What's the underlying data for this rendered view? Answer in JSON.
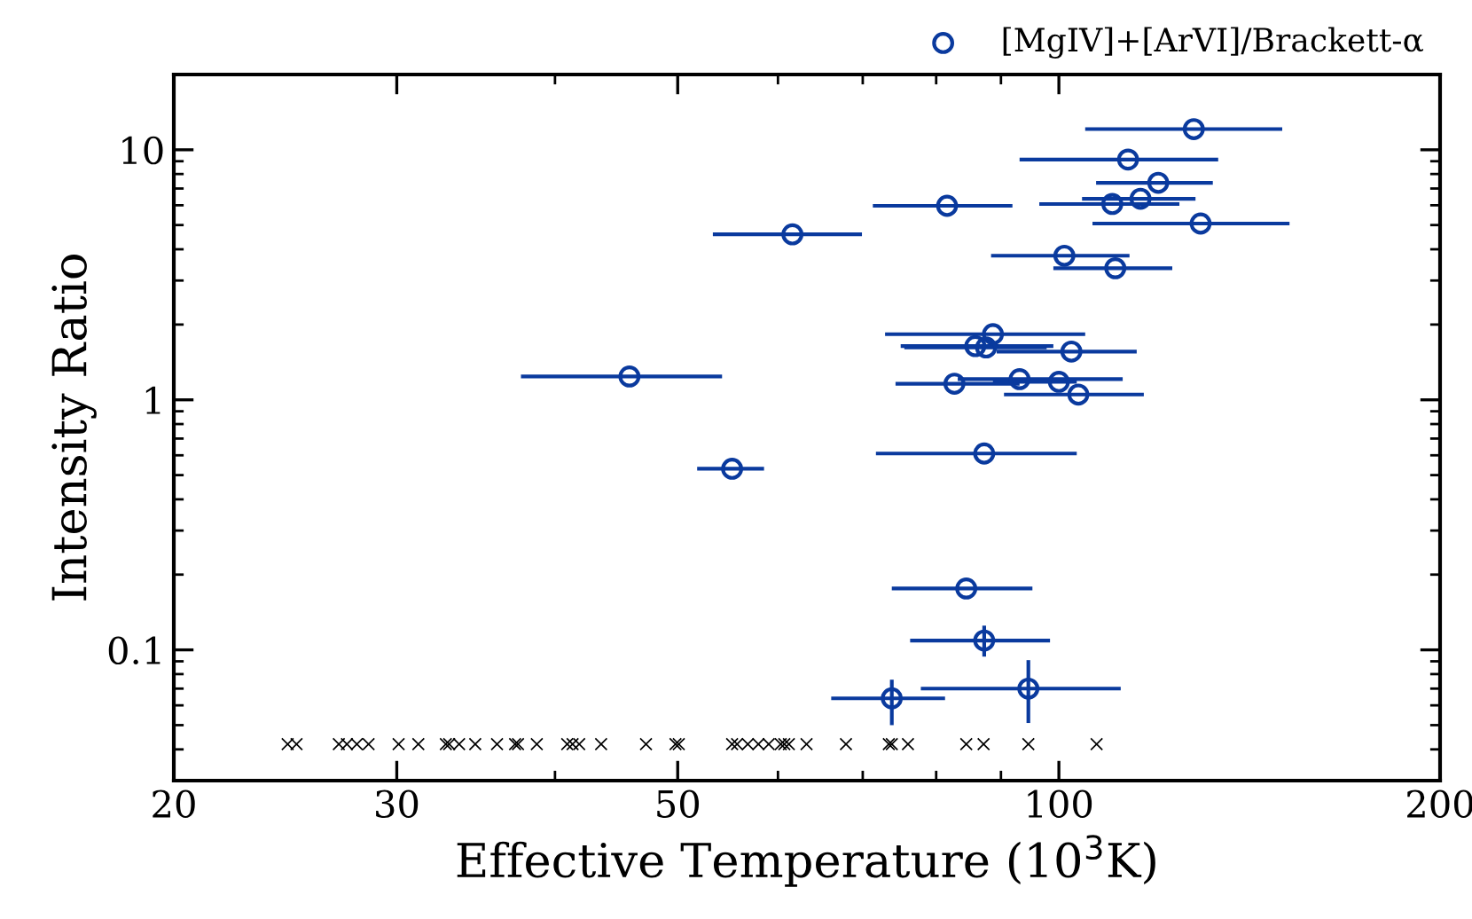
{
  "chart_data": {
    "type": "scatter",
    "xlabel": "Effective Temperature (10$^{3}$K)",
    "ylabel": "Intensity Ratio",
    "log": "xy",
    "xlim": [
      20,
      200
    ],
    "xticks": [
      20,
      30,
      50,
      100,
      200
    ],
    "ylim": [
      0.03,
      20
    ],
    "yticks": [
      {
        "value": 0.1,
        "label": "0.1"
      },
      1,
      10
    ],
    "grid": false,
    "legend": "top right",
    "series": [
      {
        "name": "[MgIV]+[ArVI]/Brackett-α",
        "color": "#0a3a9e",
        "marker": "circle",
        "x": [
          127.8,
          113.4,
          119.8,
          110.2,
          116.0,
          129.4,
          81.6,
          61.6,
          101.0,
          110.8,
          88.7,
          85.9,
          87.6,
          102.3,
          45.8,
          82.7,
          93.1,
          100.0,
          103.6,
          87.3,
          55.2,
          84.5,
          87.3,
          94.6,
          73.8
        ],
        "values": [
          12.1,
          9.14,
          7.38,
          6.07,
          6.37,
          5.07,
          5.97,
          4.59,
          3.77,
          3.36,
          1.83,
          1.64,
          1.62,
          1.56,
          1.24,
          1.16,
          1.21,
          1.18,
          1.05,
          0.61,
          0.53,
          0.176,
          0.109,
          0.07,
          0.064
        ],
        "xerrors": [
          [
            104.9,
            150.1
          ],
          [
            93.1,
            133.6
          ],
          [
            107.0,
            132.3
          ],
          [
            96.5,
            124.5
          ],
          [
            104.3,
            128.2
          ],
          [
            106.3,
            152.1
          ],
          [
            71.3,
            91.9
          ],
          [
            53.3,
            69.9
          ],
          [
            88.4,
            113.7
          ],
          [
            99.0,
            122.9
          ],
          [
            72.9,
            104.9
          ],
          [
            75.0,
            99.0
          ],
          [
            75.5,
            97.8
          ],
          [
            89.3,
            115.2
          ],
          [
            37.6,
            54.2
          ],
          [
            74.3,
            93.1
          ],
          [
            83.2,
            112.3
          ],
          [
            88.7,
            103.3
          ],
          [
            90.5,
            116.7
          ],
          [
            71.7,
            103.3
          ],
          [
            51.8,
            58.5
          ],
          [
            73.8,
            95.3
          ],
          [
            76.3,
            98.4
          ],
          [
            77.8,
            111.9
          ],
          [
            66.1,
            81.3
          ]
        ],
        "errors": [
          null,
          null,
          null,
          null,
          null,
          null,
          null,
          null,
          null,
          null,
          null,
          null,
          null,
          null,
          null,
          null,
          null,
          null,
          null,
          null,
          null,
          null,
          [
            0.094,
            0.125
          ],
          [
            0.051,
            0.091
          ],
          [
            0.05,
            0.076
          ]
        ]
      },
      {
        "color": "#000000",
        "marker": "cross",
        "x": [
          24.6,
          25.0,
          27.0,
          27.4,
          27.9,
          28.5,
          30.1,
          31.2,
          32.8,
          33.0,
          33.6,
          34.6,
          36.0,
          37.2,
          37.4,
          38.7,
          40.9,
          41.3,
          41.8,
          43.5,
          47.2,
          49.8,
          50.1,
          55.2,
          55.7,
          56.8,
          57.9,
          59.0,
          60.3,
          60.7,
          61.2,
          63.2,
          67.9,
          73.4,
          73.8,
          76.0,
          84.5,
          87.2,
          94.6,
          107.1
        ],
        "values": [
          0.042,
          0.042,
          0.042,
          0.042,
          0.042,
          0.042,
          0.042,
          0.042,
          0.042,
          0.042,
          0.042,
          0.042,
          0.042,
          0.042,
          0.042,
          0.042,
          0.042,
          0.042,
          0.042,
          0.042,
          0.042,
          0.042,
          0.042,
          0.042,
          0.042,
          0.042,
          0.042,
          0.042,
          0.042,
          0.042,
          0.042,
          0.042,
          0.042,
          0.042,
          0.042,
          0.042,
          0.042,
          0.042,
          0.042,
          0.042
        ]
      }
    ]
  }
}
